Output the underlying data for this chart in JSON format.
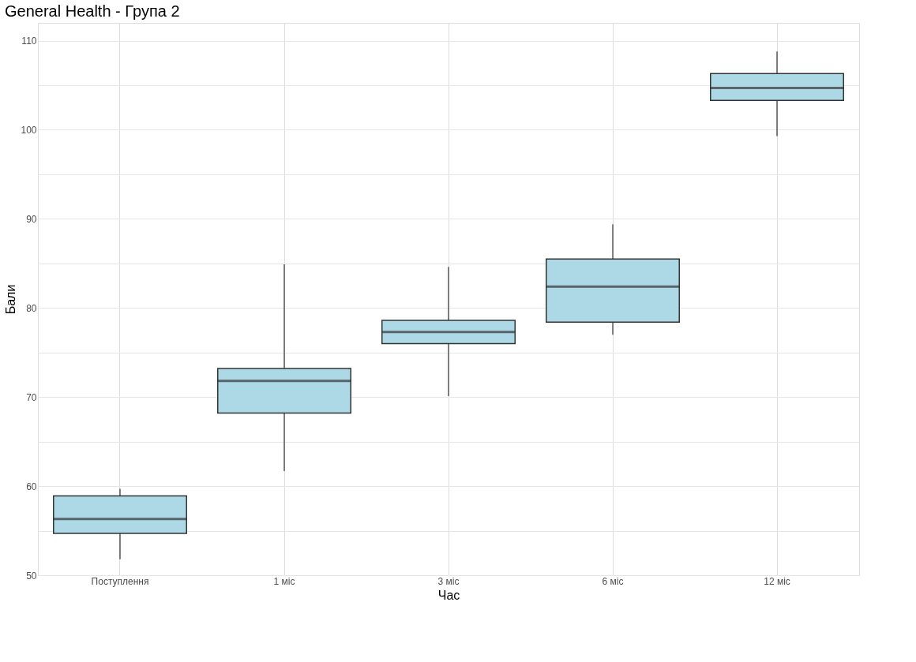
{
  "chart_data": {
    "type": "box",
    "title": "General Health - Група 2",
    "xlabel": "Час",
    "ylabel": "Бали",
    "categories": [
      "Поступлення",
      "1 міс",
      "3 міс",
      "6 міс",
      "12 міс"
    ],
    "color": "#add8e6",
    "boxes": [
      {
        "low": 51.8,
        "q1": 54.7,
        "median": 56.3,
        "q3": 58.9,
        "high": 59.7
      },
      {
        "low": 61.7,
        "q1": 68.2,
        "median": 71.8,
        "q3": 73.2,
        "high": 84.9
      },
      {
        "low": 70.1,
        "q1": 76.0,
        "median": 77.3,
        "q3": 78.6,
        "high": 84.6
      },
      {
        "low": 77.0,
        "q1": 78.4,
        "median": 82.4,
        "q3": 85.5,
        "high": 89.4
      },
      {
        "low": 99.3,
        "q1": 103.3,
        "median": 104.7,
        "q3": 106.3,
        "high": 108.8
      }
    ],
    "ylim": [
      50,
      112
    ],
    "yticks": [
      50,
      {
        "value": 55,
        "label": null
      },
      60,
      {
        "value": 65,
        "label": null
      },
      70,
      {
        "value": 75,
        "label": null
      },
      80,
      {
        "value": 85,
        "label": null
      },
      90,
      {
        "value": 95,
        "label": null
      },
      100,
      {
        "value": 105,
        "label": null
      },
      110
    ],
    "grid": true
  }
}
